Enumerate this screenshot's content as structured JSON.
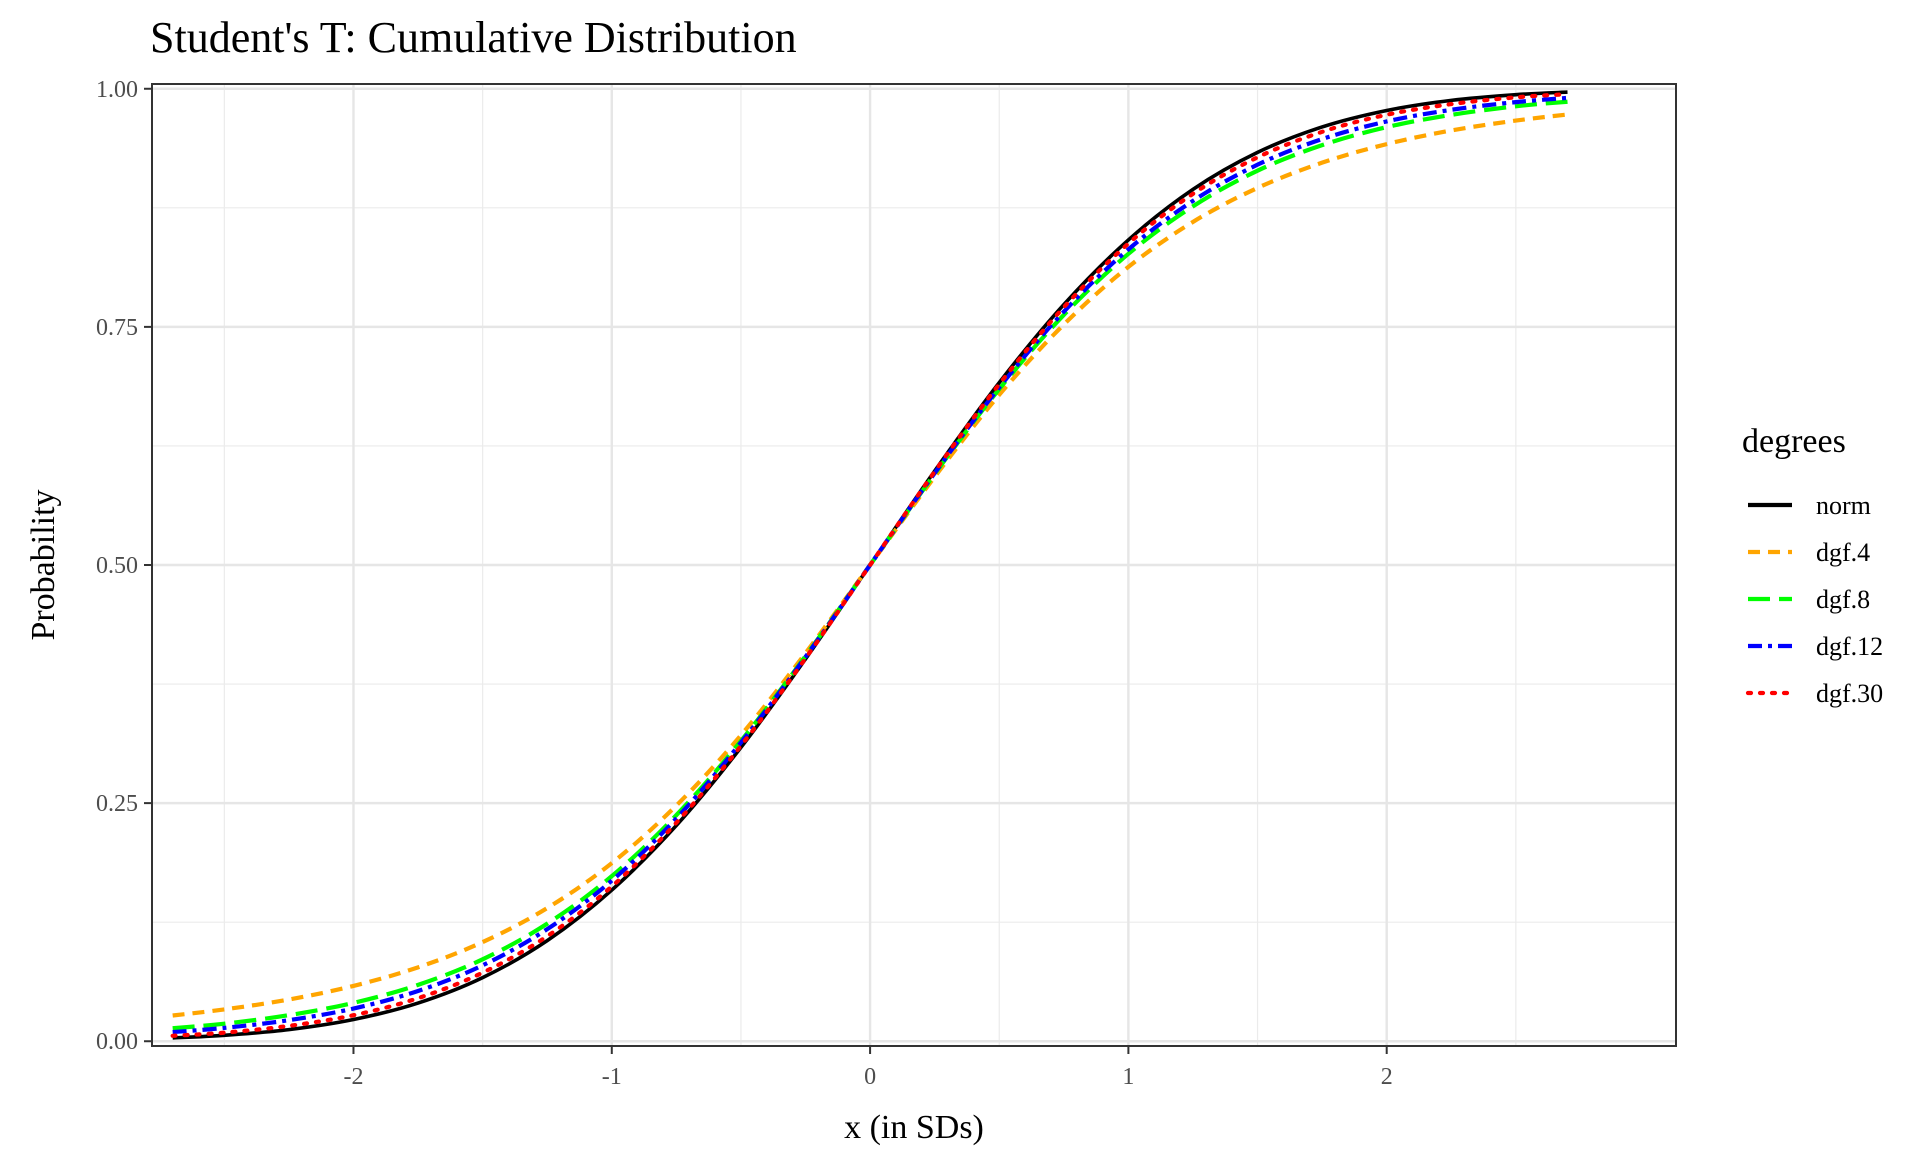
{
  "chart_data": {
    "type": "line",
    "title": "Student's T: Cumulative Distribution",
    "xlabel": "x (in SDs)",
    "ylabel": "Probability",
    "xlim": [
      -2.78,
      3.12
    ],
    "ylim": [
      -0.005,
      1.005
    ],
    "x_ticks": [
      -2,
      -1,
      0,
      1,
      2
    ],
    "x_tick_labels": [
      "-2",
      "-1",
      "0",
      "1",
      "2"
    ],
    "y_ticks": [
      0,
      0.25,
      0.5,
      0.75,
      1
    ],
    "y_tick_labels": [
      "0.00",
      "0.25",
      "0.50",
      "0.75",
      "1.00"
    ],
    "grid": true,
    "legend": {
      "title": "degrees",
      "placement": "right"
    },
    "x": [
      -2.7,
      -2.5,
      -2.25,
      -2.0,
      -1.75,
      -1.5,
      -1.25,
      -1.0,
      -0.75,
      -0.5,
      -0.25,
      0.0,
      0.25,
      0.5,
      0.75,
      1.0,
      1.25,
      1.5,
      1.75,
      2.0,
      2.25,
      2.5,
      2.7
    ],
    "series": [
      {
        "name": "norm",
        "color": "#000000",
        "dash": "solid",
        "values": [
          0.0035,
          0.0062,
          0.0122,
          0.0228,
          0.0401,
          0.0668,
          0.1056,
          0.1587,
          0.2266,
          0.3085,
          0.4013,
          0.5,
          0.5987,
          0.6915,
          0.7734,
          0.8413,
          0.8944,
          0.9332,
          0.9599,
          0.9772,
          0.9878,
          0.9938,
          0.9965
        ]
      },
      {
        "name": "dgf.4",
        "color": "#FFA500",
        "dash": "dashed",
        "values": [
          0.027,
          0.0334,
          0.0438,
          0.0581,
          0.0776,
          0.1041,
          0.1398,
          0.187,
          0.2475,
          0.3213,
          0.4075,
          0.5,
          0.5925,
          0.6787,
          0.7525,
          0.813,
          0.8602,
          0.8959,
          0.9224,
          0.9419,
          0.9562,
          0.9666,
          0.973
        ]
      },
      {
        "name": "dgf.8",
        "color": "#00FF00",
        "dash": "longdash",
        "values": [
          0.0136,
          0.0184,
          0.0274,
          0.0403,
          0.0592,
          0.086,
          0.1234,
          0.1733,
          0.2374,
          0.3153,
          0.4044,
          0.5,
          0.5956,
          0.6847,
          0.7626,
          0.8267,
          0.8766,
          0.914,
          0.9408,
          0.9597,
          0.9726,
          0.9816,
          0.9864
        ]
      },
      {
        "name": "dgf.12",
        "color": "#0000FF",
        "dash": "twodash",
        "values": [
          0.0096,
          0.014,
          0.0221,
          0.0343,
          0.0528,
          0.0797,
          0.1177,
          0.1686,
          0.234,
          0.3136,
          0.4035,
          0.5,
          0.5965,
          0.6864,
          0.766,
          0.8314,
          0.8823,
          0.9203,
          0.9472,
          0.9657,
          0.9779,
          0.986,
          0.9904
        ]
      },
      {
        "name": "dgf.30",
        "color": "#FF0000",
        "dash": "dotted",
        "values": [
          0.0057,
          0.009,
          0.0161,
          0.0273,
          0.0452,
          0.072,
          0.1103,
          0.1625,
          0.2294,
          0.3102,
          0.402,
          0.5,
          0.598,
          0.6898,
          0.7706,
          0.8375,
          0.8897,
          0.928,
          0.9548,
          0.9727,
          0.9839,
          0.991,
          0.9943
        ]
      }
    ]
  }
}
